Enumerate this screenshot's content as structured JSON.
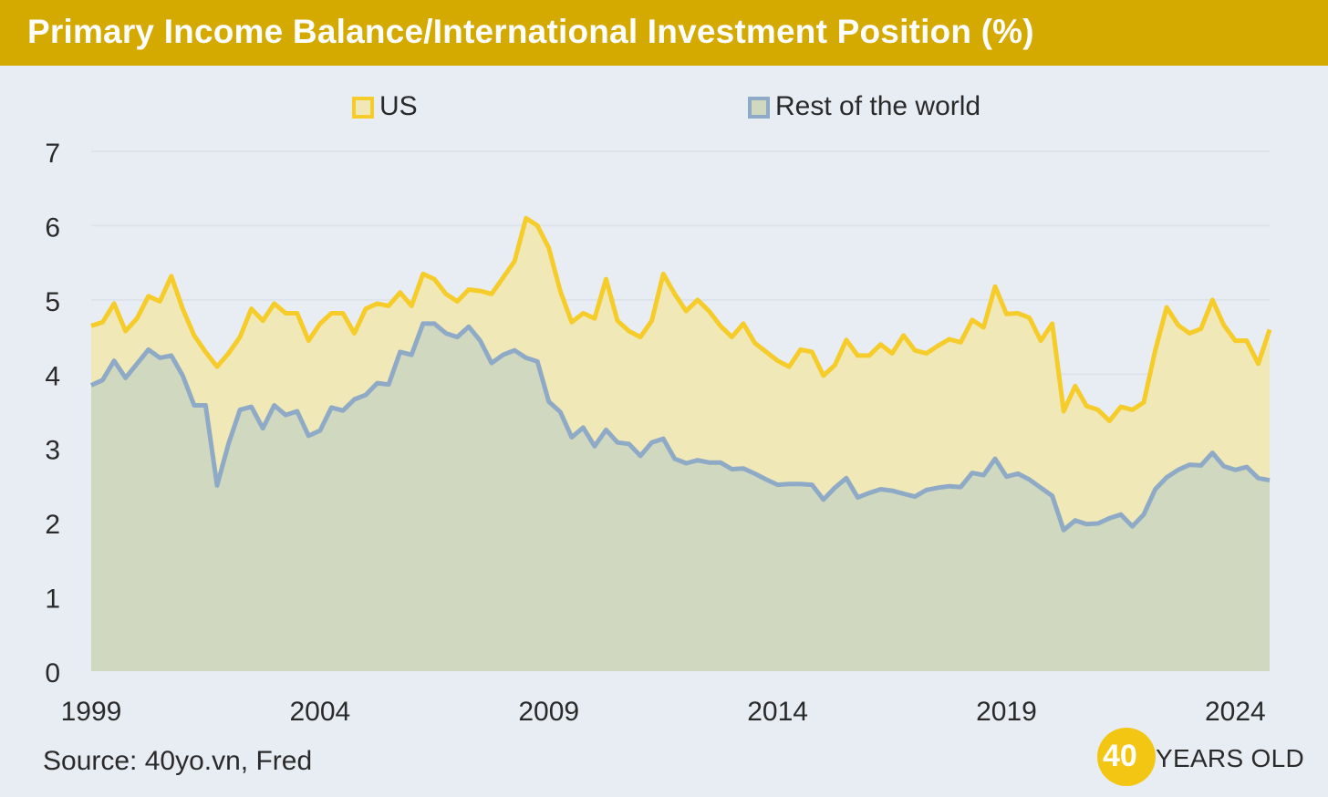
{
  "header": {
    "title": "Primary Income Balance/International Investment Position (%)"
  },
  "footer": {
    "source": "Source: 40yo.vn, Fred",
    "logo_number": "40",
    "logo_text": "YEARS OLD"
  },
  "colors": {
    "title_bar": "#d4a900",
    "background": "#e8edf3",
    "us_line": "#f5cc2a",
    "us_fill": "#f0e8b6",
    "rest_line": "#8eaac6",
    "rest_fill": "#d1d8c0"
  },
  "chart_data": {
    "type": "area",
    "title": "Primary Income Balance/International Investment Position (%)",
    "xlabel": "",
    "ylabel": "",
    "xlim": [
      1999,
      2024.75
    ],
    "ylim": [
      0,
      7
    ],
    "yticks": [
      "0",
      "1",
      "2",
      "3",
      "4",
      "5",
      "6",
      "7"
    ],
    "xticks": [
      1999,
      2004,
      2009,
      2014,
      2019,
      2024
    ],
    "grid": true,
    "legend": "top-center",
    "frequency": "quarterly",
    "x_start": "1999 Q1",
    "series": [
      {
        "name": "US",
        "color": "#f5cc2a",
        "values": [
          4.65,
          4.7,
          4.95,
          4.58,
          4.75,
          5.05,
          4.98,
          5.32,
          4.88,
          4.52,
          4.3,
          4.1,
          4.28,
          4.5,
          4.88,
          4.72,
          4.95,
          4.82,
          4.82,
          4.45,
          4.68,
          4.82,
          4.82,
          4.55,
          4.88,
          4.95,
          4.92,
          5.1,
          4.92,
          5.35,
          5.28,
          5.08,
          4.98,
          5.14,
          5.12,
          5.08,
          5.3,
          5.52,
          6.1,
          6.0,
          5.7,
          5.12,
          4.7,
          4.82,
          4.75,
          5.28,
          4.72,
          4.58,
          4.5,
          4.72,
          5.35,
          5.08,
          4.85,
          5.0,
          4.85,
          4.65,
          4.5,
          4.68,
          4.42,
          4.3,
          4.18,
          4.1,
          4.33,
          4.3,
          3.98,
          4.12,
          4.46,
          4.25,
          4.25,
          4.4,
          4.28,
          4.52,
          4.32,
          4.28,
          4.38,
          4.47,
          4.43,
          4.73,
          4.63,
          5.18,
          4.81,
          4.82,
          4.76,
          4.45,
          4.68,
          3.5,
          3.84,
          3.57,
          3.52,
          3.37,
          3.56,
          3.52,
          3.62,
          4.32,
          4.9,
          4.66,
          4.55,
          4.61,
          5.0,
          4.66,
          4.45,
          4.45,
          4.14,
          4.6
        ]
      },
      {
        "name": "Rest of the world",
        "color": "#8eaac6",
        "values": [
          3.85,
          3.92,
          4.18,
          3.95,
          4.14,
          4.33,
          4.22,
          4.25,
          3.98,
          3.58,
          3.58,
          2.5,
          3.06,
          3.52,
          3.56,
          3.27,
          3.58,
          3.45,
          3.5,
          3.17,
          3.24,
          3.55,
          3.51,
          3.66,
          3.72,
          3.88,
          3.86,
          4.3,
          4.26,
          4.68,
          4.68,
          4.55,
          4.5,
          4.64,
          4.45,
          4.15,
          4.26,
          4.32,
          4.22,
          4.17,
          3.63,
          3.49,
          3.15,
          3.28,
          3.03,
          3.25,
          3.08,
          3.06,
          2.9,
          3.08,
          3.13,
          2.86,
          2.8,
          2.84,
          2.81,
          2.81,
          2.72,
          2.73,
          2.66,
          2.58,
          2.51,
          2.52,
          2.52,
          2.51,
          2.31,
          2.47,
          2.6,
          2.34,
          2.4,
          2.45,
          2.43,
          2.39,
          2.35,
          2.44,
          2.47,
          2.49,
          2.48,
          2.67,
          2.64,
          2.86,
          2.62,
          2.66,
          2.58,
          2.47,
          2.36,
          1.9,
          2.03,
          1.98,
          1.99,
          2.06,
          2.11,
          1.95,
          2.11,
          2.45,
          2.61,
          2.71,
          2.78,
          2.77,
          2.94,
          2.76,
          2.71,
          2.75,
          2.6,
          2.57
        ]
      }
    ]
  }
}
